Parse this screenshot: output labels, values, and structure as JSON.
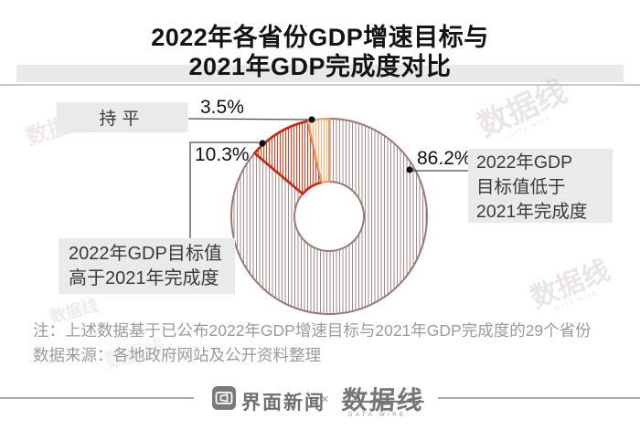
{
  "title": {
    "line1": "2022年各省份GDP增速目标与",
    "line2": "2021年GDP完成度对比"
  },
  "chart_data": {
    "type": "pie",
    "title": "2022年各省份GDP增速目标与2021年GDP完成度对比",
    "donut_hole_ratio": 0.355,
    "start_angle_deg": 0,
    "direction": "clockwise",
    "unit": "share of 29 provinces",
    "slices": [
      {
        "label": "2022年GDP目标值低于2021年完成度",
        "value": 86.2,
        "display": "86.2%",
        "stroke": "#987a75",
        "stroke_width": 2,
        "hatch": "#a5898b",
        "hatch_bg": "#ffffff",
        "hatch_step": 3.5
      },
      {
        "label": "2022年GDP目标值高于2021年完成度",
        "value": 10.3,
        "display": "10.3%",
        "stroke": "#c22d18",
        "stroke_width": 2.8,
        "hatch": "#cb4b31",
        "hatch_bg": "#fdf0ec",
        "hatch_step": 3
      },
      {
        "label": "持平",
        "value": 3.5,
        "display": "3.5%",
        "stroke": "#e79d5f",
        "stroke_width": 2,
        "hatch": "#eebd92",
        "hatch_bg": "#fdf4e9",
        "hatch_step": 3
      }
    ]
  },
  "callouts": {
    "flat": "持平",
    "higher_line1": "2022年GDP目标值",
    "higher_line2": "高于2021年完成度",
    "lower_line1": "2022年GDP",
    "lower_line2": "目标值低于",
    "lower_line3": "2021年完成度"
  },
  "notes": {
    "line1": "注：上述数据基于已公布2022年GDP增速目标与2021年GDP完成度的29个省份",
    "line2": "数据来源：各地政府网站及公开资料整理"
  },
  "footer": {
    "brand1": "界面新闻",
    "separator": "×",
    "brand2": "数据线",
    "brand2_sub": "DATA WIRE"
  },
  "watermark": {
    "text": "数据线",
    "sub": "DATA WIRE"
  },
  "colors": {
    "accent_red": "#c22d18",
    "accent_orange": "#e79d5f",
    "accent_mauve": "#987a75",
    "band_grey": "#e9e9e9",
    "box_grey": "#eaeaea",
    "note_grey": "#9b9b9b"
  }
}
